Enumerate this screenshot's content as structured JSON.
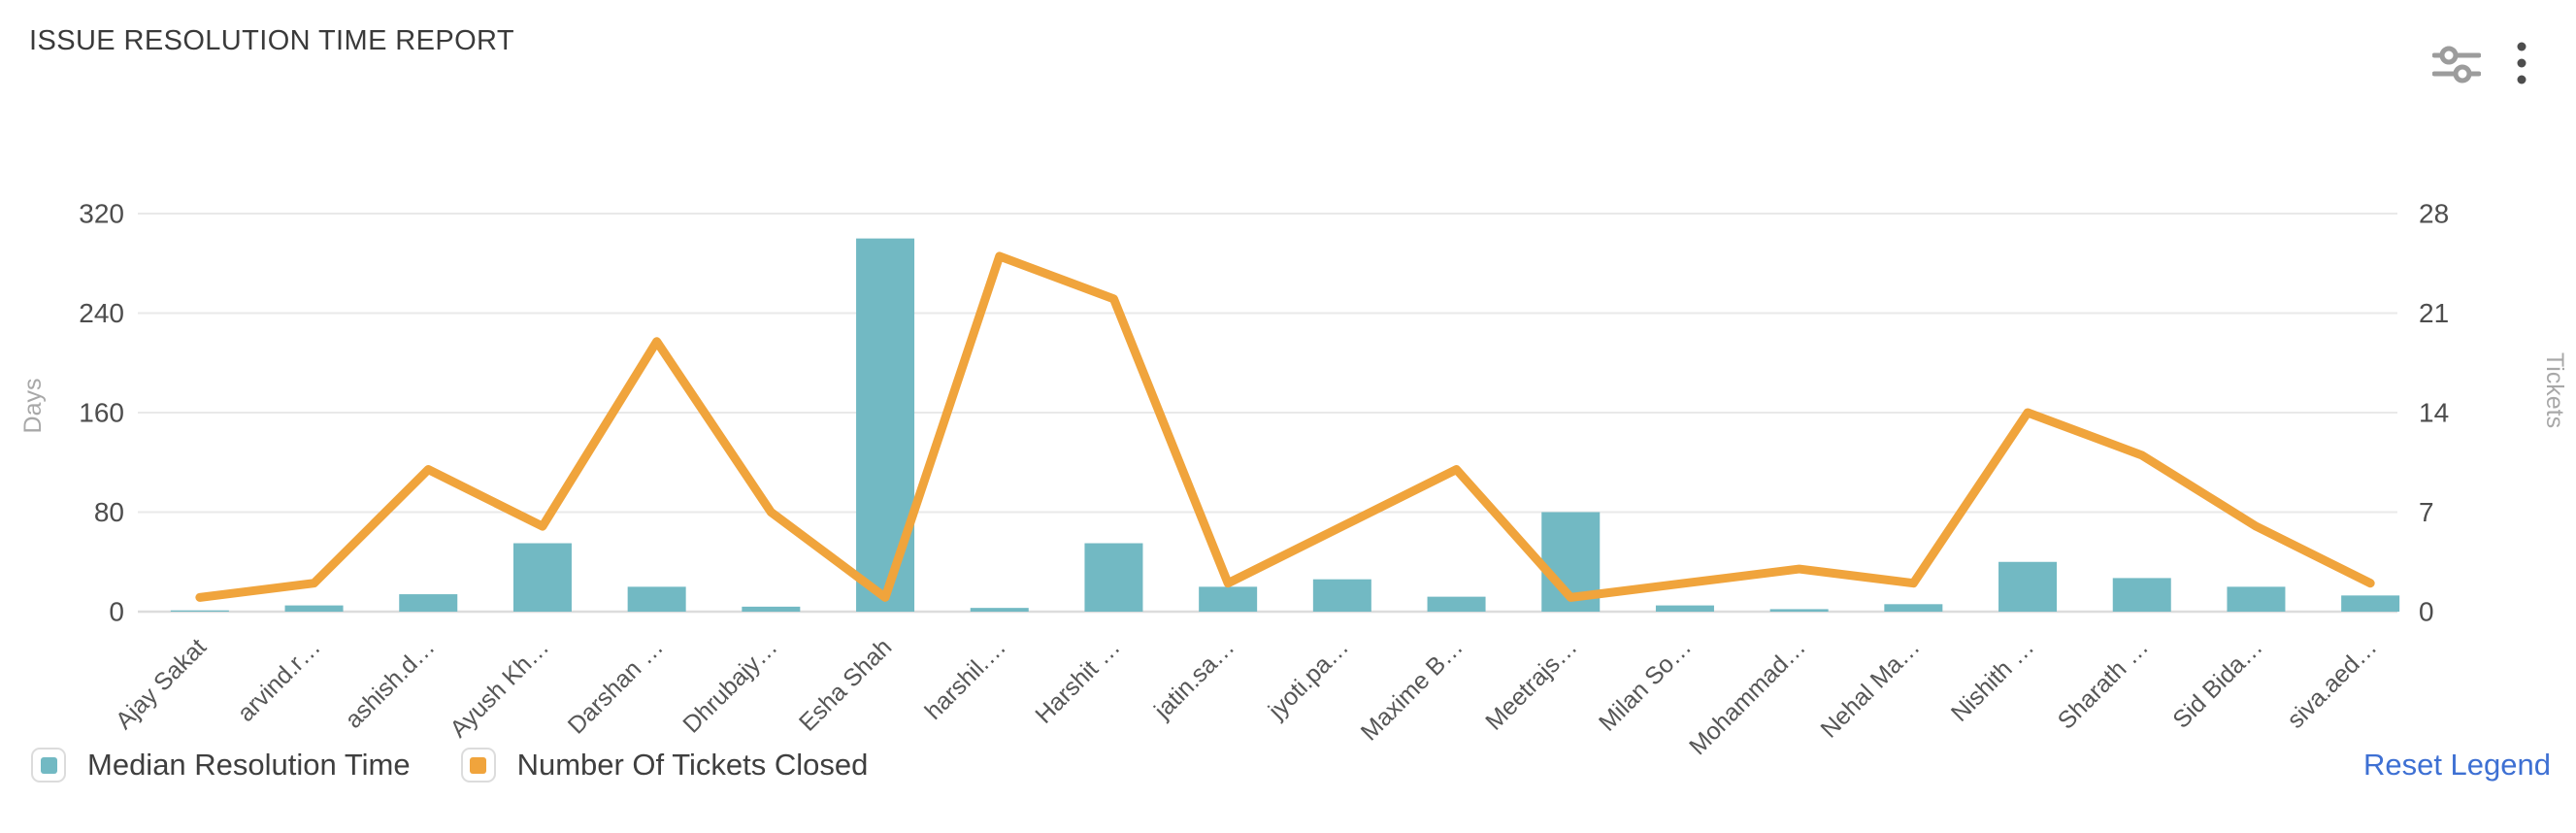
{
  "header": {
    "title": "ISSUE RESOLUTION TIME REPORT",
    "icons": {
      "filter_icon": "sliders-icon",
      "menu_icon": "kebab-menu-icon"
    }
  },
  "chart_data": {
    "type": "bar",
    "subtype": "combo-bar-line-dual-axis",
    "categories": [
      "Ajay Sakat",
      "arvind.r…",
      "ashish.d…",
      "Ayush Kh…",
      "Darshan …",
      "Dhrubajy…",
      "Esha Shah",
      "harshil.…",
      "Harshit …",
      "jatin.sa…",
      "jyoti.pa…",
      "Maxime B…",
      "Meetrajs…",
      "Milan So…",
      "Mohammad…",
      "Nehal Ma…",
      "Nishith …",
      "Sharath …",
      "Sid Bida…",
      "siva.aed…"
    ],
    "series": [
      {
        "name": "Median Resolution Time",
        "type": "bar",
        "axis": "left",
        "color": "#72B9C3",
        "values": [
          1,
          5,
          14,
          55,
          20,
          4,
          300,
          3,
          55,
          20,
          26,
          12,
          80,
          5,
          2,
          6,
          40,
          27,
          20,
          13
        ]
      },
      {
        "name": "Number Of Tickets Closed",
        "type": "line",
        "axis": "right",
        "color": "#F0A43C",
        "values": [
          1,
          2,
          10,
          6,
          19,
          7,
          1,
          25,
          22,
          2,
          6,
          10,
          1,
          2,
          3,
          2,
          14,
          11,
          6,
          2
        ]
      }
    ],
    "y_left": {
      "name": "Days",
      "ticks": [
        0,
        80,
        160,
        240,
        320
      ],
      "min": 0,
      "max": 320
    },
    "y_right": {
      "name": "Tickets",
      "ticks": [
        0,
        7,
        14,
        21,
        28
      ],
      "min": 0,
      "max": 28
    },
    "grid": true,
    "x_label_rotation": 45,
    "legend_position": "bottom"
  },
  "legend": {
    "items": [
      {
        "label": "Median Resolution Time",
        "color": "#72B9C3"
      },
      {
        "label": "Number Of Tickets Closed",
        "color": "#F0A43C"
      }
    ],
    "reset_label": "Reset Legend"
  }
}
